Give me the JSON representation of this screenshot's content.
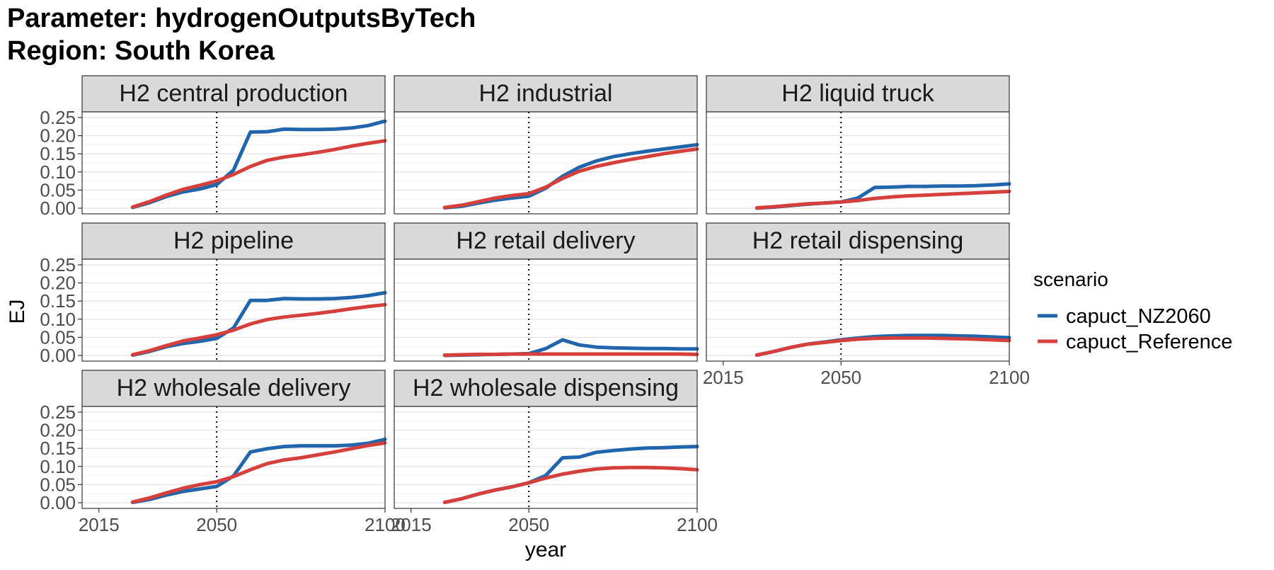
{
  "chart_data": {
    "type": "line",
    "title_line1": "Parameter: hydrogenOutputsByTech",
    "title_line2": "Region: South Korea",
    "xlabel": "year",
    "ylabel": "EJ",
    "x_ticks": [
      2015,
      2050,
      2100
    ],
    "y_ticks": [
      0.0,
      0.05,
      0.1,
      0.15,
      0.2,
      0.25
    ],
    "y_tick_labels": [
      "0.00",
      "0.05",
      "0.10",
      "0.15",
      "0.20",
      "0.25"
    ],
    "xlim": [
      2010,
      2100
    ],
    "ylim": [
      0,
      0.25
    ],
    "reference_line_x": 2050,
    "grid": true,
    "legend": {
      "title": "scenario",
      "placement": "right",
      "entries": [
        {
          "name": "capuct_NZ2060",
          "color": "#2166ac"
        },
        {
          "name": "capuct_Reference",
          "color": "#d6403c"
        }
      ]
    },
    "x": [
      2025,
      2030,
      2035,
      2040,
      2045,
      2050,
      2055,
      2060,
      2065,
      2070,
      2075,
      2080,
      2085,
      2090,
      2095,
      2100
    ],
    "facets": [
      {
        "name": "H2 central production",
        "series": [
          {
            "name": "capuct_NZ2060",
            "values": [
              0.002,
              0.015,
              0.032,
              0.045,
              0.053,
              0.065,
              0.105,
              0.21,
              0.211,
              0.218,
              0.217,
              0.217,
              0.218,
              0.221,
              0.228,
              0.24
            ]
          },
          {
            "name": "capuct_Reference",
            "values": [
              0.003,
              0.018,
              0.036,
              0.052,
              0.063,
              0.075,
              0.093,
              0.115,
              0.132,
              0.141,
              0.147,
              0.154,
              0.162,
              0.171,
              0.179,
              0.186
            ]
          }
        ]
      },
      {
        "name": "H2 industrial",
        "series": [
          {
            "name": "capuct_NZ2060",
            "values": [
              0.001,
              0.005,
              0.014,
              0.022,
              0.028,
              0.033,
              0.055,
              0.088,
              0.113,
              0.13,
              0.142,
              0.15,
              0.157,
              0.163,
              0.169,
              0.175
            ]
          },
          {
            "name": "capuct_Reference",
            "values": [
              0.002,
              0.008,
              0.018,
              0.028,
              0.035,
              0.04,
              0.058,
              0.082,
              0.102,
              0.115,
              0.125,
              0.134,
              0.142,
              0.15,
              0.157,
              0.163
            ]
          }
        ]
      },
      {
        "name": "H2 liquid truck",
        "series": [
          {
            "name": "capuct_NZ2060",
            "values": [
              0.0,
              0.003,
              0.007,
              0.011,
              0.014,
              0.017,
              0.028,
              0.057,
              0.058,
              0.06,
              0.06,
              0.061,
              0.061,
              0.062,
              0.064,
              0.067
            ]
          },
          {
            "name": "capuct_Reference",
            "values": [
              0.001,
              0.004,
              0.008,
              0.012,
              0.014,
              0.017,
              0.021,
              0.027,
              0.031,
              0.034,
              0.036,
              0.038,
              0.04,
              0.042,
              0.044,
              0.046
            ]
          }
        ]
      },
      {
        "name": "H2 pipeline",
        "series": [
          {
            "name": "capuct_NZ2060",
            "values": [
              0.001,
              0.011,
              0.024,
              0.033,
              0.039,
              0.047,
              0.076,
              0.152,
              0.152,
              0.157,
              0.156,
              0.156,
              0.157,
              0.16,
              0.165,
              0.173
            ]
          },
          {
            "name": "capuct_Reference",
            "values": [
              0.002,
              0.013,
              0.027,
              0.04,
              0.048,
              0.057,
              0.07,
              0.087,
              0.099,
              0.106,
              0.111,
              0.116,
              0.122,
              0.129,
              0.135,
              0.14
            ]
          }
        ]
      },
      {
        "name": "H2 retail delivery",
        "series": [
          {
            "name": "capuct_NZ2060",
            "values": [
              0.0,
              0.001,
              0.002,
              0.003,
              0.004,
              0.005,
              0.019,
              0.043,
              0.029,
              0.023,
              0.021,
              0.02,
              0.019,
              0.019,
              0.018,
              0.018
            ]
          },
          {
            "name": "capuct_Reference",
            "values": [
              0.001,
              0.002,
              0.003,
              0.003,
              0.004,
              0.004,
              0.004,
              0.004,
              0.004,
              0.004,
              0.004,
              0.004,
              0.004,
              0.004,
              0.004,
              0.003
            ]
          }
        ]
      },
      {
        "name": "H2 retail dispensing",
        "series": [
          {
            "name": "capuct_NZ2060",
            "values": [
              0.001,
              0.011,
              0.022,
              0.031,
              0.037,
              0.043,
              0.048,
              0.052,
              0.054,
              0.055,
              0.055,
              0.055,
              0.054,
              0.053,
              0.051,
              0.049
            ]
          },
          {
            "name": "capuct_Reference",
            "values": [
              0.001,
              0.011,
              0.022,
              0.031,
              0.036,
              0.041,
              0.045,
              0.047,
              0.048,
              0.048,
              0.048,
              0.047,
              0.046,
              0.045,
              0.043,
              0.041
            ]
          }
        ]
      },
      {
        "name": "H2 wholesale delivery",
        "series": [
          {
            "name": "capuct_NZ2060",
            "values": [
              0.001,
              0.009,
              0.021,
              0.031,
              0.038,
              0.045,
              0.074,
              0.14,
              0.149,
              0.155,
              0.157,
              0.157,
              0.157,
              0.159,
              0.164,
              0.175
            ]
          },
          {
            "name": "capuct_Reference",
            "values": [
              0.002,
              0.013,
              0.027,
              0.04,
              0.05,
              0.058,
              0.072,
              0.091,
              0.108,
              0.118,
              0.124,
              0.132,
              0.14,
              0.149,
              0.158,
              0.165
            ]
          }
        ]
      },
      {
        "name": "H2 wholesale dispensing",
        "series": [
          {
            "name": "capuct_NZ2060",
            "values": [
              0.001,
              0.011,
              0.024,
              0.035,
              0.044,
              0.055,
              0.075,
              0.124,
              0.126,
              0.139,
              0.144,
              0.148,
              0.151,
              0.152,
              0.154,
              0.155
            ]
          },
          {
            "name": "capuct_Reference",
            "values": [
              0.001,
              0.011,
              0.024,
              0.035,
              0.044,
              0.055,
              0.068,
              0.079,
              0.087,
              0.093,
              0.096,
              0.097,
              0.097,
              0.096,
              0.094,
              0.091
            ]
          }
        ]
      }
    ]
  }
}
